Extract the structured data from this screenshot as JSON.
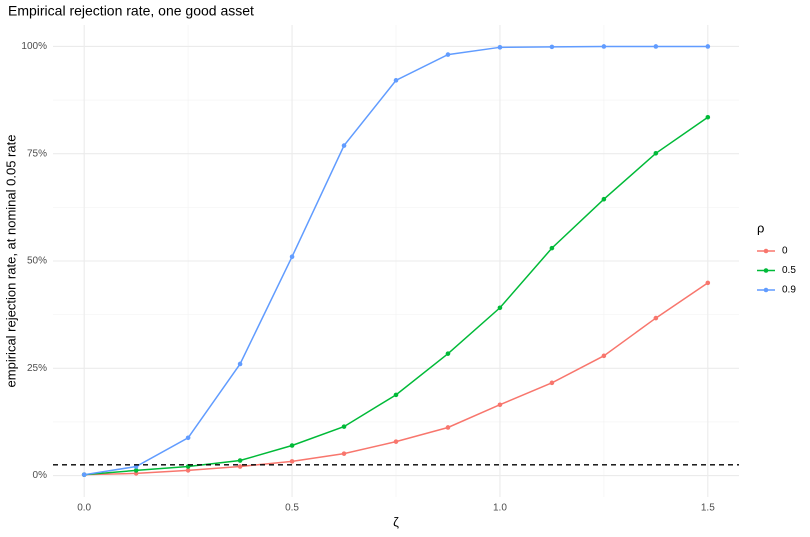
{
  "chart_data": {
    "type": "line",
    "title": "Empirical rejection rate, one good asset",
    "x_label": "ζ",
    "y_label": "empirical rejection rate, at nominal 0.05 rate",
    "legend_title": "ρ",
    "legend_position": "right",
    "grid": true,
    "x": [
      0,
      0.125,
      0.25,
      0.375,
      0.5,
      0.625,
      0.75,
      0.875,
      1.0,
      1.125,
      1.25,
      1.375,
      1.5
    ],
    "series": [
      {
        "name": "0",
        "color": "#F8766D",
        "values": [
          0.2,
          0.5,
          1.2,
          2.1,
          3.3,
          5.1,
          7.9,
          11.2,
          16.5,
          21.6,
          27.9,
          36.7,
          44.9
        ]
      },
      {
        "name": "0.5",
        "color": "#00BA38",
        "values": [
          0.2,
          1.2,
          2.1,
          3.5,
          7.0,
          11.4,
          18.8,
          28.4,
          39.1,
          53.0,
          64.4,
          75.1,
          83.5
        ]
      },
      {
        "name": "0.9",
        "color": "#619CFF",
        "values": [
          0.2,
          2.1,
          8.8,
          26.0,
          51.0,
          76.9,
          92.1,
          98.1,
          99.8,
          99.9,
          100,
          100,
          100
        ]
      }
    ],
    "hline": {
      "value": 2.5,
      "style": "dashed",
      "color": "#000000"
    },
    "xlim": [
      -0.075,
      1.575
    ],
    "ylim": [
      -5,
      105
    ],
    "xticks": [
      {
        "value": 0,
        "label": "0.0"
      },
      0.5,
      {
        "value": 1,
        "label": "1.0"
      },
      1.5
    ],
    "yticks": [
      {
        "value": 0,
        "label": "0%"
      },
      {
        "value": 25,
        "label": "25%"
      },
      {
        "value": 50,
        "label": "50%"
      },
      {
        "value": 75,
        "label": "75%"
      },
      {
        "value": 100,
        "label": "100%"
      }
    ]
  }
}
